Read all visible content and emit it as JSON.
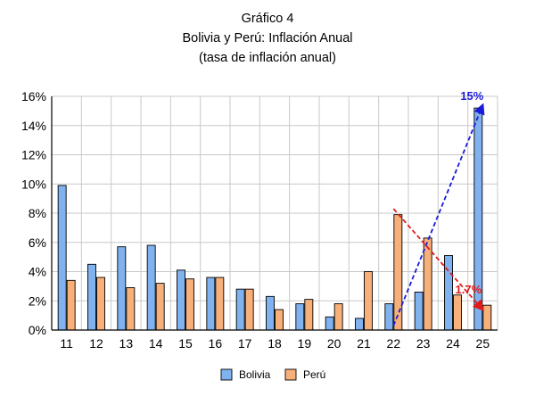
{
  "header": {
    "line1": "Gráfico 4",
    "line2": "Bolivia y Perú: Inflación Anual",
    "line3": "(tasa de inflación anual)"
  },
  "chart_data": {
    "type": "bar",
    "title": "Bolivia y Perú: Inflación Anual",
    "subtitle": "(tasa de inflación anual)",
    "categories": [
      "11",
      "12",
      "13",
      "14",
      "15",
      "16",
      "17",
      "18",
      "19",
      "20",
      "21",
      "22",
      "23",
      "24",
      "25"
    ],
    "series": [
      {
        "name": "Bolivia",
        "color": "#7fb2ee",
        "values": [
          9.9,
          4.5,
          5.7,
          5.8,
          4.1,
          3.6,
          2.8,
          2.3,
          1.8,
          0.9,
          0.8,
          1.8,
          2.6,
          5.1,
          15.2
        ]
      },
      {
        "name": "Perú",
        "color": "#f7b07a",
        "values": [
          3.4,
          3.6,
          2.9,
          3.2,
          3.5,
          3.6,
          2.8,
          1.4,
          2.1,
          1.8,
          4.0,
          7.9,
          6.3,
          2.4,
          1.7
        ]
      }
    ],
    "ylim": [
      0,
      16
    ],
    "yticks": [
      0,
      2,
      4,
      6,
      8,
      10,
      12,
      14,
      16
    ],
    "ytick_format": "%",
    "grid": true,
    "legend": "bottom",
    "annotations": [
      {
        "text": "15%",
        "color": "#1a1adc",
        "from": {
          "x": "22",
          "y": 0.3
        },
        "to": {
          "x": "25",
          "y": 15.4
        },
        "style": "dashed-arrow"
      },
      {
        "text": "1.7%",
        "color": "#e01a1a",
        "from": {
          "x": "22",
          "y": 8.3
        },
        "to": {
          "x": "25",
          "y": 1.4
        },
        "style": "dashed-arrow"
      }
    ]
  }
}
